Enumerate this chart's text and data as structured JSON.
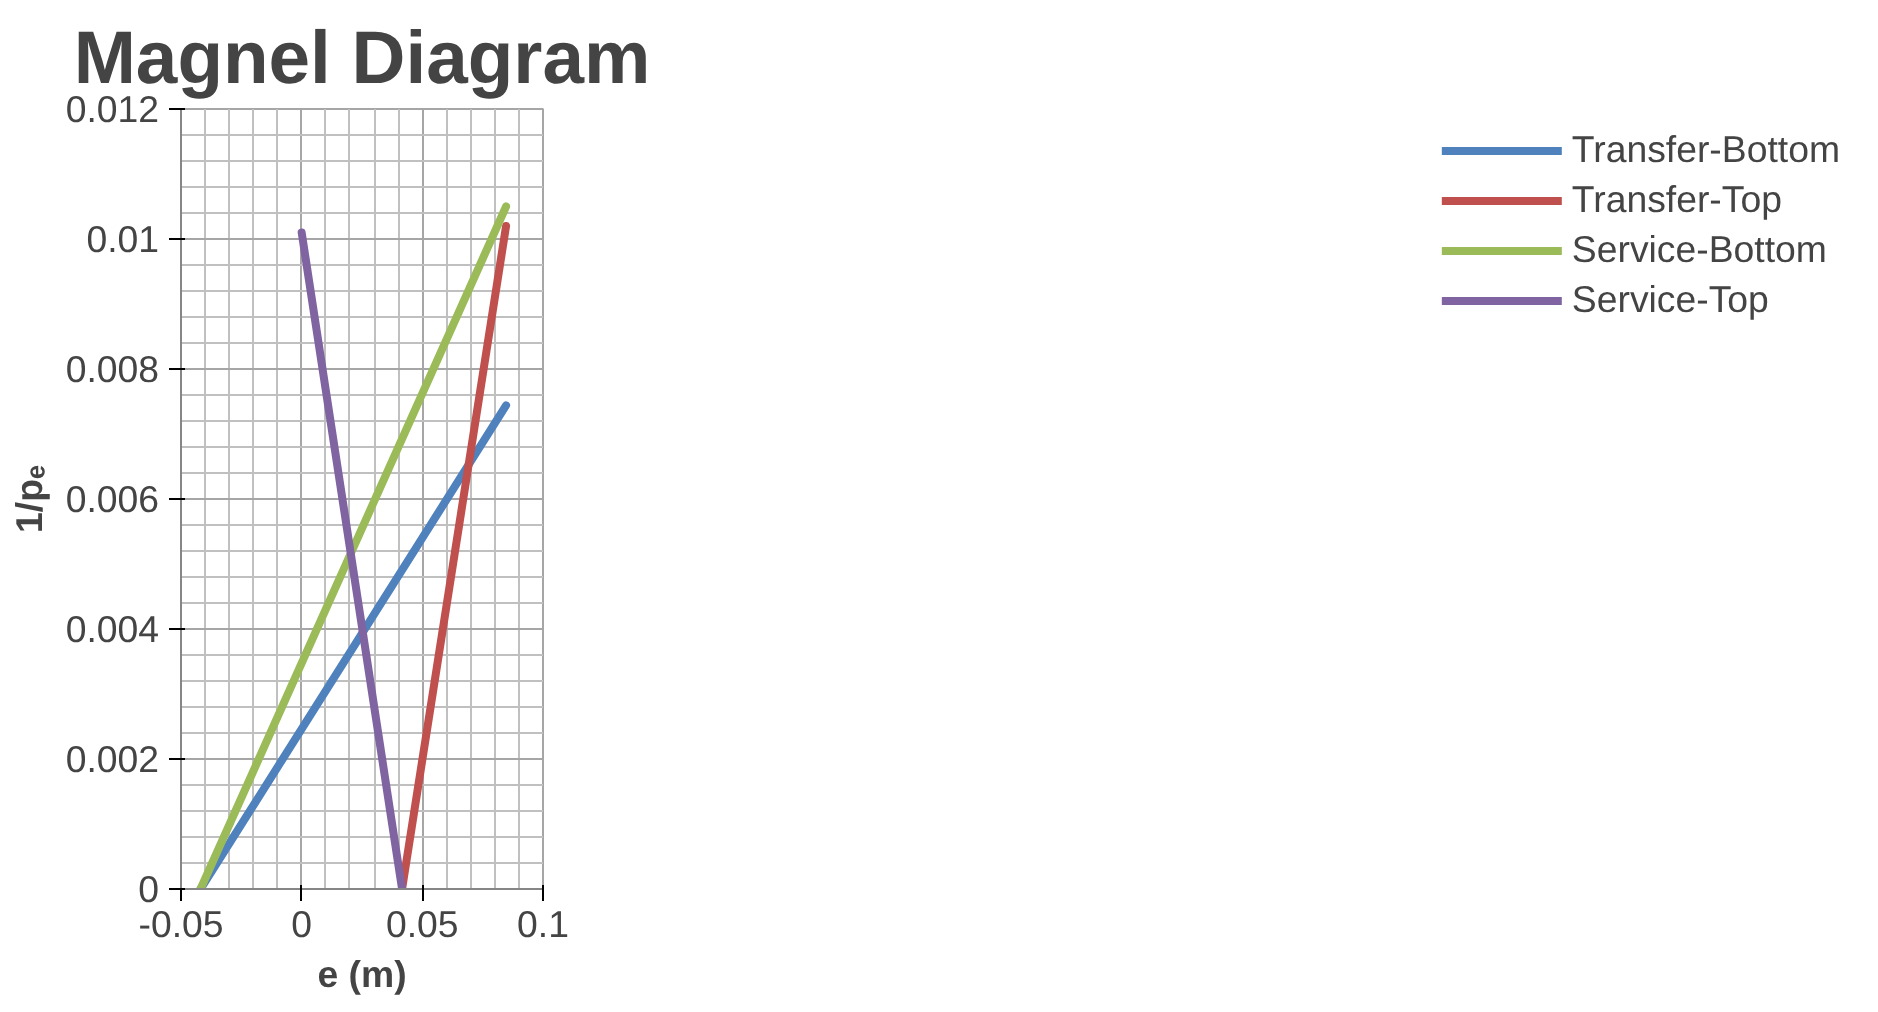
{
  "chart_data": {
    "type": "line",
    "title": "Magnel Diagram",
    "xlabel": "e (m)",
    "ylabel": "1/pₑ",
    "series": [
      {
        "name": "Transfer-Bottom",
        "color": "#4f81bd",
        "x": [
          -0.0419,
          0.0847
        ],
        "values": [
          0,
          0.00744
        ]
      },
      {
        "name": "Transfer-Top",
        "color": "#c0504d",
        "x": [
          0.0416,
          0.0847
        ],
        "values": [
          0,
          0.0102
        ]
      },
      {
        "name": "Service-Bottom",
        "color": "#9bbb59",
        "x": [
          -0.0419,
          0.0847
        ],
        "values": [
          0,
          0.0105
        ]
      },
      {
        "name": "Service-Top",
        "color": "#8064a2",
        "x": [
          0,
          0.0416
        ],
        "values": [
          0.0101,
          0
        ]
      }
    ],
    "xlim": [
      -0.05,
      0.1
    ],
    "xticks": [
      -0.05,
      0,
      0.05,
      0.1
    ],
    "ylim": [
      0,
      0.012
    ],
    "yticks": [
      0,
      0.002,
      0.004,
      0.006,
      0.008,
      0.01,
      0.012
    ],
    "grid": true,
    "legend": "right",
    "marker": "none",
    "line_style": "solid"
  }
}
